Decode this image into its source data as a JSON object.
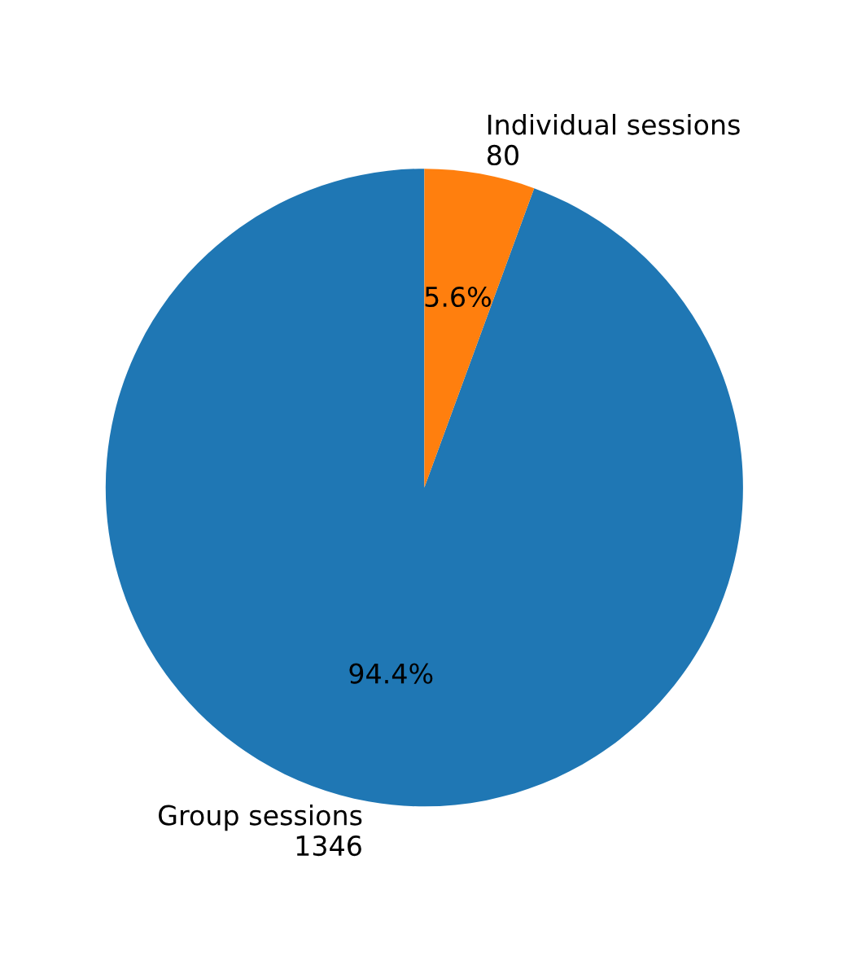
{
  "chart_data": {
    "type": "pie",
    "categories": [
      "Group sessions\n1346",
      "Individual sessions\n80"
    ],
    "values": [
      94.4,
      5.6
    ],
    "colors": [
      "#1f77b4",
      "#ff7f0e"
    ],
    "value_labels": [
      "94.4%",
      "5.6%"
    ]
  }
}
